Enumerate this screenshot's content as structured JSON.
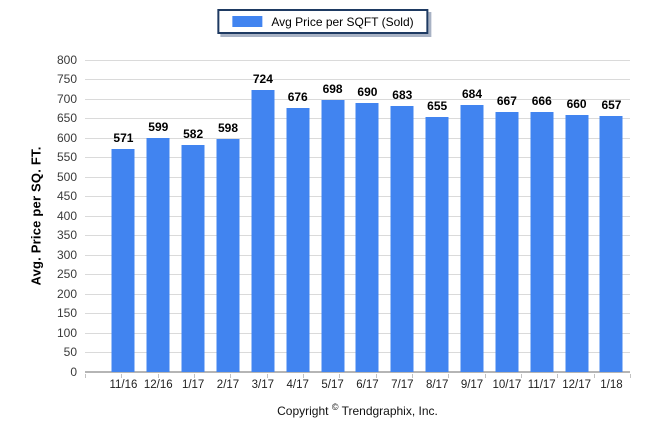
{
  "legend": {
    "label": "Avg Price per SQFT (Sold)",
    "swatch_color": "#4184F0",
    "border_color": "#1E3A62"
  },
  "y_axis": {
    "title": "Avg. Price per SQ. FT."
  },
  "footer": {
    "copyright_prefix": "Copyright ",
    "copyright_symbol": "©",
    "copyright_suffix": " Trendgraphix, Inc."
  },
  "chart_data": {
    "type": "bar",
    "title": "",
    "legend": [
      "Avg Price per SQFT (Sold)"
    ],
    "legend_position": "top-center",
    "categories": [
      "11/16",
      "12/16",
      "1/17",
      "2/17",
      "3/17",
      "4/17",
      "5/17",
      "6/17",
      "7/17",
      "8/17",
      "9/17",
      "10/17",
      "11/17",
      "12/17",
      "1/18"
    ],
    "values": [
      571,
      599,
      582,
      598,
      724,
      676,
      698,
      690,
      683,
      655,
      684,
      667,
      666,
      660,
      657
    ],
    "xlabel": "",
    "ylabel": "Avg. Price per SQ. FT.",
    "ylim": [
      0,
      800
    ],
    "ytick_step": 50,
    "grid": true,
    "bar_color": "#4184F0",
    "gridline_color": "#DADADA",
    "axis_line_color": "#B5B5B5"
  }
}
